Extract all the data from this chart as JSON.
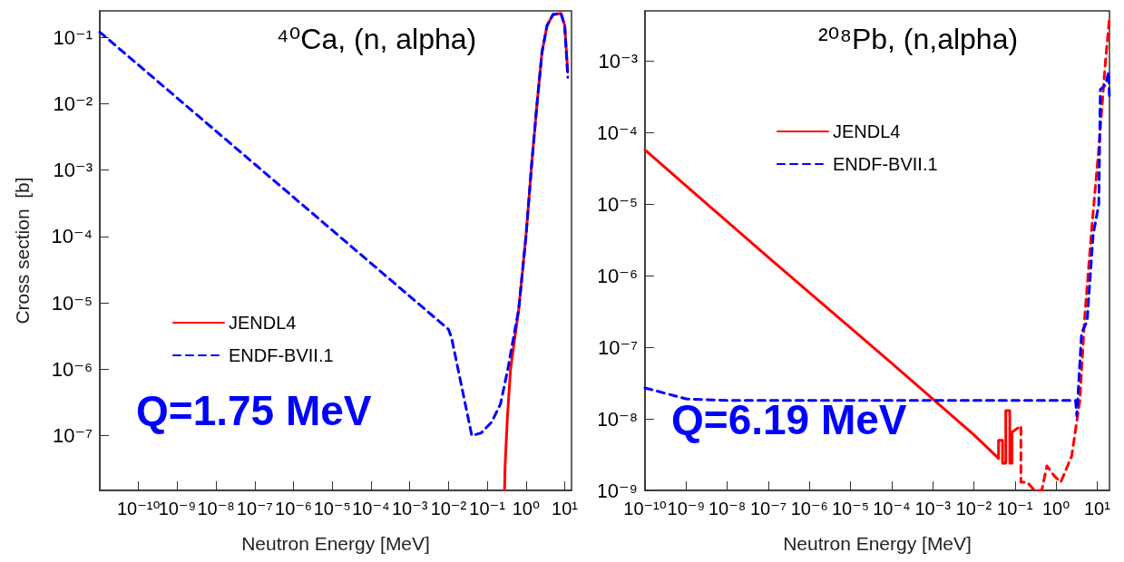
{
  "chart_data": [
    {
      "type": "line",
      "title": "⁴⁰Ca, (n, alpha)",
      "xlabel": "Neutron Energy [MeV]",
      "ylabel": "Cross section  [b]",
      "log": "xy",
      "legend": "center left",
      "grid": false,
      "marker": "none",
      "xlim": [
        1e-11,
        15
      ],
      "ylim": [
        1.5e-08,
        0.25
      ],
      "xticks": [
        {
          "value": 1e-10,
          "label": "10⁻¹⁰"
        },
        {
          "value": 1e-09,
          "label": "10⁻⁹"
        },
        {
          "value": 1e-08,
          "label": "10⁻⁸"
        },
        {
          "value": 1e-07,
          "label": "10⁻⁷"
        },
        {
          "value": 1e-06,
          "label": "10⁻⁶"
        },
        {
          "value": 1e-05,
          "label": "10⁻⁵"
        },
        {
          "value": 0.0001,
          "label": "10⁻⁴"
        },
        {
          "value": 0.001,
          "label": "10⁻³"
        },
        {
          "value": 0.01,
          "label": "10⁻²"
        },
        {
          "value": 0.1,
          "label": "10⁻¹"
        },
        {
          "value": 1,
          "label": "10⁰"
        },
        {
          "value": 10,
          "label": "10¹"
        }
      ],
      "yticks": [
        {
          "value": 1e-07,
          "label": "10⁻⁷"
        },
        {
          "value": 1e-06,
          "label": "10⁻⁶"
        },
        {
          "value": 1e-05,
          "label": "10⁻⁵"
        },
        {
          "value": 0.0001,
          "label": "10⁻⁴"
        },
        {
          "value": 0.001,
          "label": "10⁻³"
        },
        {
          "value": 0.01,
          "label": "10⁻²"
        },
        {
          "value": 0.1,
          "label": "10⁻¹"
        }
      ],
      "annotations": [
        "Q=1.75 MeV"
      ],
      "series": [
        {
          "name": "JENDL4",
          "color": "#ff0000",
          "line_style": "solid",
          "x": [
            0.28,
            0.29,
            0.33,
            0.4,
            0.65,
            1.0,
            1.4,
            1.9,
            2.6,
            3.5,
            5.0,
            8,
            10,
            12
          ],
          "values": [
            1.5e-08,
            3.6e-08,
            1.8e-07,
            1e-06,
            8e-06,
            0.0001,
            0.0012,
            0.009,
            0.06,
            0.15,
            0.22,
            0.23,
            0.15,
            0.03
          ]
        },
        {
          "name": "ENDF-BVII.1",
          "color": "#0000ff",
          "line_style": "dashed",
          "x": [
            1e-11,
            0.01,
            0.012,
            0.04,
            0.07,
            0.13,
            0.22,
            0.34,
            0.42,
            0.65,
            1.0,
            1.4,
            1.9,
            2.6,
            3.5,
            5.0,
            8,
            10,
            12
          ],
          "values": [
            0.12,
            4e-06,
            3e-06,
            1e-07,
            1.1e-07,
            1.6e-07,
            3e-07,
            1e-06,
            2e-06,
            8e-06,
            0.0001,
            0.0012,
            0.009,
            0.06,
            0.15,
            0.22,
            0.23,
            0.15,
            0.025
          ]
        }
      ]
    },
    {
      "type": "line",
      "title": "²⁰⁸Pb, (n,alpha)",
      "xlabel": "Neutron Energy [MeV]",
      "log": "xy",
      "legend": "top",
      "grid": false,
      "marker": "none",
      "xlim": [
        1e-10,
        20
      ],
      "ylim": [
        1e-09,
        0.005
      ],
      "xticks": [
        {
          "value": 1e-10,
          "label": "10⁻¹⁰"
        },
        {
          "value": 1e-09,
          "label": "10⁻⁹"
        },
        {
          "value": 1e-08,
          "label": "10⁻⁸"
        },
        {
          "value": 1e-07,
          "label": "10⁻⁷"
        },
        {
          "value": 1e-06,
          "label": "10⁻⁶"
        },
        {
          "value": 1e-05,
          "label": "10⁻⁵"
        },
        {
          "value": 0.0001,
          "label": "10⁻⁴"
        },
        {
          "value": 0.001,
          "label": "10⁻³"
        },
        {
          "value": 0.01,
          "label": "10⁻²"
        },
        {
          "value": 0.1,
          "label": "10⁻¹"
        },
        {
          "value": 1,
          "label": "10⁰"
        },
        {
          "value": 10,
          "label": "10¹"
        }
      ],
      "yticks": [
        {
          "value": 1e-09,
          "label": "10⁻⁹"
        },
        {
          "value": 1e-08,
          "label": "10⁻⁸"
        },
        {
          "value": 1e-07,
          "label": "10⁻⁷"
        },
        {
          "value": 1e-06,
          "label": "10⁻⁶"
        },
        {
          "value": 1e-05,
          "label": "10⁻⁵"
        },
        {
          "value": 0.0001,
          "label": "10⁻⁴"
        },
        {
          "value": 0.001,
          "label": "10⁻³"
        }
      ],
      "annotations": [
        "Q=6.19 MeV"
      ],
      "series": [
        {
          "name": "JENDL4",
          "color": "#ff0000",
          "line_style": "solid",
          "x": [
            1e-10,
            1e-07,
            0.0001,
            0.001,
            0.01,
            0.04,
            0.04,
            0.05,
            0.05,
            0.06,
            0.06,
            0.075,
            0.075,
            0.085,
            0.085
          ],
          "values": [
            5.7e-05,
            1.8e-06,
            6e-08,
            1.9e-08,
            6e-09,
            2.8e-09,
            5e-09,
            5e-09,
            2.4e-09,
            2.4e-09,
            1.3e-08,
            1.3e-08,
            2.4e-09,
            2.4e-09,
            6.5e-09
          ]
        },
        {
          "color": "#ff0000",
          "line_style": "dashed",
          "x": [
            0.085,
            0.14,
            0.14,
            0.2,
            0.3,
            0.45,
            0.6,
            0.9,
            1.3,
            2.4,
            3.8,
            5.0,
            7.5,
            11,
            16,
            20
          ],
          "values": [
            6.5e-09,
            8e-09,
            1.3e-09,
            1.3e-09,
            1e-09,
            1e-09,
            2.2e-09,
            1.6e-09,
            1.3e-09,
            3e-09,
            1.8e-08,
            2.7e-07,
            5e-06,
            6e-05,
            0.001,
            0.004
          ]
        },
        {
          "name": "ENDF-BVII.1",
          "color": "#0000ff",
          "line_style": "dashed",
          "x": [
            1e-10,
            1e-09,
            1e-08,
            3.0,
            3.2,
            4.2,
            5.7,
            8,
            11,
            12,
            16,
            19,
            20
          ],
          "values": [
            2.7e-08,
            1.9e-08,
            1.8e-08,
            1.8e-08,
            1.1e-08,
            1.6e-07,
            2.3e-07,
            3.7e-06,
            1e-05,
            0.0004,
            0.00046,
            0.0007,
            0.0003
          ]
        }
      ]
    }
  ]
}
